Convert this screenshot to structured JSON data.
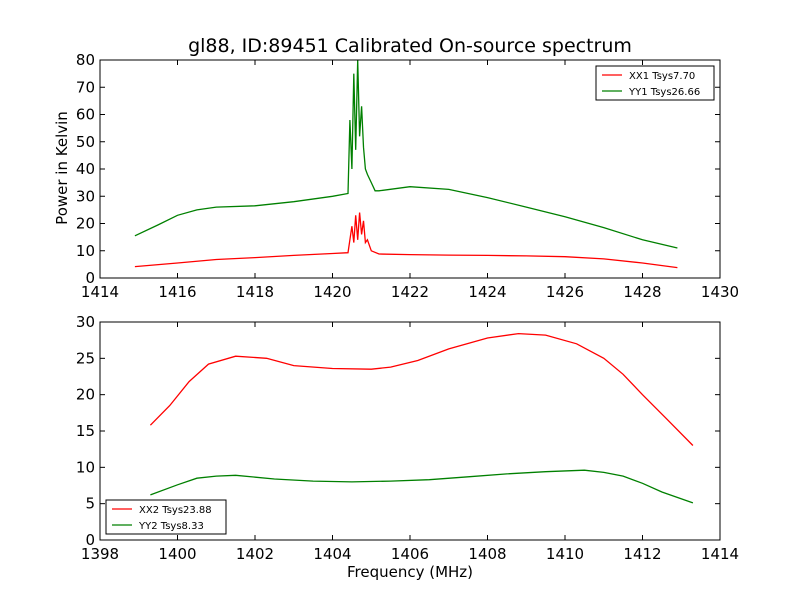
{
  "chart_data": [
    {
      "type": "line",
      "title": "gl88, ID:89451 Calibrated On-source spectrum",
      "xlabel": "",
      "ylabel": "Power in Kelvin",
      "xlim": [
        1414,
        1430
      ],
      "ylim": [
        0,
        80
      ],
      "xticks": [
        "1414",
        "1416",
        "1418",
        "1420",
        "1422",
        "1424",
        "1426",
        "1428",
        "1430"
      ],
      "yticks": [
        "0",
        "10",
        "20",
        "30",
        "40",
        "50",
        "60",
        "70",
        "80"
      ],
      "grid": false,
      "legend_position": "top-right",
      "series": [
        {
          "name": "XX1 Tsys7.70",
          "color": "#ff0000",
          "x": [
            1414.9,
            1416,
            1417,
            1418,
            1419,
            1420,
            1420.4,
            1420.5,
            1420.55,
            1420.6,
            1420.65,
            1420.7,
            1420.75,
            1420.8,
            1420.85,
            1420.9,
            1421,
            1421.2,
            1422,
            1423,
            1424,
            1425,
            1426,
            1427,
            1428,
            1428.9
          ],
          "y": [
            4.2,
            5.5,
            6.8,
            7.5,
            8.3,
            9.0,
            9.3,
            19,
            13,
            23,
            14,
            24,
            16,
            21,
            13,
            14,
            10,
            8.8,
            8.6,
            8.4,
            8.3,
            8.1,
            7.8,
            7.0,
            5.5,
            3.8
          ]
        },
        {
          "name": "YY1 Tsys26.66",
          "color": "#008000",
          "x": [
            1414.9,
            1415.5,
            1416,
            1416.5,
            1417,
            1418,
            1419,
            1420,
            1420.4,
            1420.45,
            1420.5,
            1420.55,
            1420.6,
            1420.65,
            1420.7,
            1420.75,
            1420.8,
            1420.85,
            1420.9,
            1421,
            1421.1,
            1421.2,
            1422,
            1423,
            1424,
            1425,
            1426,
            1427,
            1428,
            1428.9
          ],
          "y": [
            15.5,
            19.5,
            23,
            25,
            26,
            26.5,
            28,
            30,
            31,
            58,
            40,
            75,
            47,
            80,
            52,
            63,
            48,
            40,
            38,
            35,
            32,
            32,
            33.5,
            32.5,
            29.5,
            26,
            22.5,
            18.5,
            14,
            11
          ]
        }
      ]
    },
    {
      "type": "line",
      "title": "",
      "xlabel": "Frequency (MHz)",
      "ylabel": "",
      "xlim": [
        1398,
        1414
      ],
      "ylim": [
        0,
        30
      ],
      "xticks": [
        "1398",
        "1400",
        "1402",
        "1404",
        "1406",
        "1408",
        "1410",
        "1412",
        "1414"
      ],
      "yticks": [
        "0",
        "5",
        "10",
        "15",
        "20",
        "25",
        "30"
      ],
      "grid": false,
      "legend_position": "bottom-left",
      "series": [
        {
          "name": "XX2 Tsys23.88",
          "color": "#ff0000",
          "x": [
            1399.3,
            1399.8,
            1400.3,
            1400.8,
            1401.5,
            1402.3,
            1403,
            1404,
            1405,
            1405.5,
            1406.2,
            1407,
            1408,
            1408.8,
            1409.5,
            1410.3,
            1411,
            1411.5,
            1412,
            1412.6,
            1413.3
          ],
          "y": [
            15.8,
            18.5,
            21.8,
            24.2,
            25.3,
            25,
            24,
            23.6,
            23.5,
            23.8,
            24.7,
            26.3,
            27.8,
            28.4,
            28.2,
            27,
            25,
            22.8,
            20,
            16.8,
            13
          ]
        },
        {
          "name": "YY2 Tsys8.33",
          "color": "#008000",
          "x": [
            1399.3,
            1400,
            1400.5,
            1401,
            1401.5,
            1402.5,
            1403.5,
            1404.5,
            1405.5,
            1406.5,
            1407.5,
            1408.5,
            1409.5,
            1410.5,
            1411,
            1411.5,
            1412,
            1412.5,
            1413.3
          ],
          "y": [
            6.2,
            7.6,
            8.5,
            8.8,
            8.9,
            8.4,
            8.1,
            8.0,
            8.1,
            8.3,
            8.7,
            9.1,
            9.4,
            9.6,
            9.3,
            8.8,
            7.8,
            6.6,
            5.1
          ]
        }
      ]
    }
  ]
}
